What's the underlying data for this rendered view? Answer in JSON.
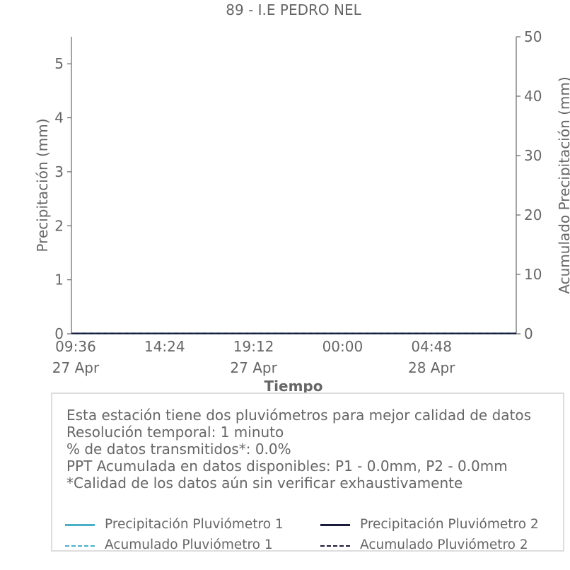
{
  "chart_data": {
    "type": "line",
    "title": "89 - I.E PEDRO NEL",
    "xlabel": "Tiempo",
    "ylabel": "Precipitación (mm)",
    "y2label": "Acumulado Precipitación (mm)",
    "ylim": [
      0,
      5.5
    ],
    "y2lim": [
      0,
      50
    ],
    "yticks": [
      "0",
      "1",
      "2",
      "3",
      "4",
      "5"
    ],
    "y2ticks": [
      "0",
      "10",
      "20",
      "30",
      "40",
      "50"
    ],
    "xticks": [
      {
        "time": "09:36",
        "date": "27 Apr"
      },
      {
        "time": "14:24",
        "date": ""
      },
      {
        "time": "19:12",
        "date": "27 Apr"
      },
      {
        "time": "00:00",
        "date": ""
      },
      {
        "time": "04:48",
        "date": "28 Apr"
      }
    ],
    "xrange": [
      "27 Apr 09:36",
      "28 Apr 09:36"
    ],
    "grid": false,
    "series": [
      {
        "name": "Precipitación Pluviómetro 1",
        "axis": "left",
        "style": "solid",
        "color": "#4ab0c8",
        "x": [
          "27 Apr 09:36",
          "28 Apr 09:36"
        ],
        "values": [
          0,
          0
        ]
      },
      {
        "name": "Precipitación Pluviómetro 2",
        "axis": "left",
        "style": "solid",
        "color": "#1a1a3a",
        "x": [
          "27 Apr 09:36",
          "28 Apr 09:36"
        ],
        "values": [
          0,
          0
        ]
      },
      {
        "name": "Acumulado Pluviómetro 1",
        "axis": "right",
        "style": "dashed",
        "color": "#4ab0c8",
        "x": [
          "27 Apr 09:36",
          "28 Apr 09:36"
        ],
        "values": [
          0,
          0
        ]
      },
      {
        "name": "Acumulado Pluviómetro 2",
        "axis": "right",
        "style": "dashed",
        "color": "#1a1a3a",
        "x": [
          "27 Apr 09:36",
          "28 Apr 09:36"
        ],
        "values": [
          0,
          0
        ]
      }
    ],
    "legend_placement": "bottom"
  },
  "info": {
    "lines": [
      "Esta estación tiene dos pluviómetros para mejor calidad de datos",
      "Resolución temporal: 1 minuto",
      "% de datos transmitidos*: 0.0%",
      "PPT Acumulada en datos disponibles: P1 - 0.0mm, P2 - 0.0mm",
      "*Calidad de los datos aún sin verificar exhaustivamente"
    ]
  }
}
